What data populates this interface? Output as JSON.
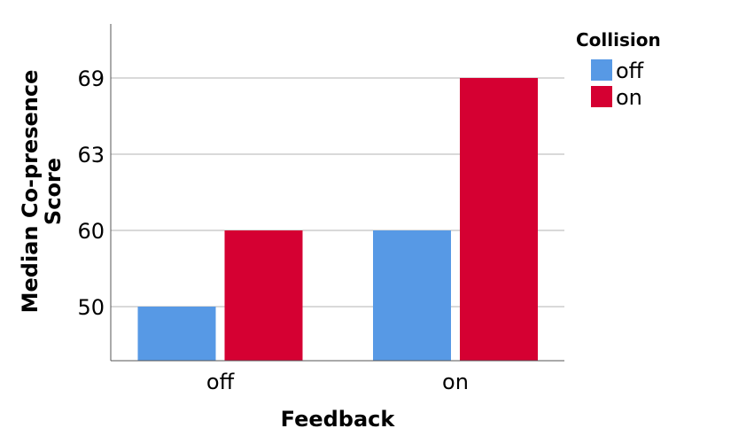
{
  "chart_data": {
    "type": "bar",
    "categories": [
      "off",
      "on"
    ],
    "xlabel": "Feedback",
    "ylabel_lines": [
      "Median Co-presence",
      "Score"
    ],
    "y_ticks": [
      50,
      60,
      63,
      69
    ],
    "grid": "horizontal",
    "legend": {
      "title": "Collision",
      "placement": "top-right"
    },
    "series": [
      {
        "name": "off",
        "color": "#5799e5",
        "values": [
          50,
          60
        ]
      },
      {
        "name": "on",
        "color": "#d50032",
        "values": [
          60,
          69
        ]
      }
    ]
  }
}
